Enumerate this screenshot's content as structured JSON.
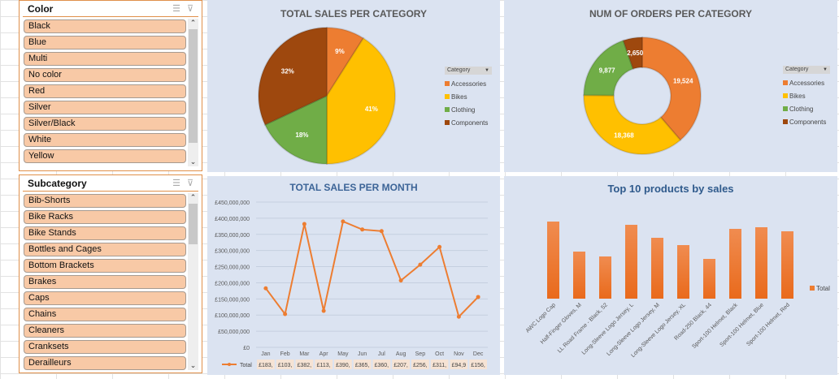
{
  "slicers": {
    "color": {
      "title": "Color",
      "items": [
        "Black",
        "Blue",
        "Multi",
        "No color",
        "Red",
        "Silver",
        "Silver/Black",
        "White",
        "Yellow"
      ]
    },
    "subcategory": {
      "title": "Subcategory",
      "items": [
        "Bib-Shorts",
        "Bike Racks",
        "Bike Stands",
        "Bottles and Cages",
        "Bottom Brackets",
        "Brakes",
        "Caps",
        "Chains",
        "Cleaners",
        "Cranksets",
        "Derailleurs"
      ]
    }
  },
  "colors": {
    "Accessories": "#ed7d31",
    "Bikes": "#ffc000",
    "Clothing": "#70ad47",
    "Components": "#9e480e",
    "line": "#ed7d31"
  },
  "chart_data": [
    {
      "type": "pie",
      "title": "TOTAL SALES PER CATEGORY",
      "legend_title": "Category",
      "legend": "right",
      "categories": [
        "Accessories",
        "Bikes",
        "Clothing",
        "Components"
      ],
      "values": [
        9,
        41,
        18,
        32
      ],
      "labels": [
        "9%",
        "41%",
        "18%",
        "32%"
      ]
    },
    {
      "type": "donut",
      "title": "NUM OF ORDERS PER CATEGORY",
      "legend_title": "Category",
      "legend": "right",
      "categories": [
        "Accessories",
        "Bikes",
        "Clothing",
        "Components"
      ],
      "values": [
        19524,
        18368,
        9877,
        2650
      ],
      "labels": [
        "19,524",
        "18,368",
        "9,877",
        "2,650"
      ]
    },
    {
      "type": "line",
      "title": "TOTAL SALES PER MONTH",
      "series_name": "Total",
      "categories": [
        "Jan",
        "Feb",
        "Mar",
        "Apr",
        "May",
        "Jun",
        "Jul",
        "Aug",
        "Sep",
        "Oct",
        "Nov",
        "Dec"
      ],
      "values": [
        183000000,
        103000000,
        382000000,
        113000000,
        390000000,
        365000000,
        360000000,
        207000000,
        256000000,
        311000000,
        94900000,
        156000000
      ],
      "table_labels": [
        "£183,",
        "£103,",
        "£382,",
        "£113,",
        "£390,",
        "£365,",
        "£360,",
        "£207,",
        "£256,",
        "£311,",
        "£94,9",
        "£156,"
      ],
      "ylim": [
        0,
        450000000
      ],
      "yticks": [
        "£0",
        "£50,000,000",
        "£100,000,000",
        "£150,000,000",
        "£200,000,000",
        "£250,000,000",
        "£300,000,000",
        "£350,000,000",
        "£400,000,000",
        "£450,000,000"
      ],
      "grid": true
    },
    {
      "type": "bar",
      "title": "Top 10 products by sales",
      "series_name": "Total",
      "legend": "right",
      "categories": [
        "AWC Logo Cap",
        "Half-Finger Gloves, M",
        "LL Road Frame - Black, 52",
        "Long-Sleeve Logo Jersey, L",
        "Long-Sleeve Logo Jersey, M",
        "Long-Sleeve Logo Jersey, XL",
        "Road-250 Black, 44",
        "Sport-100 Helmet, Black",
        "Sport-100 Helmet, Blue",
        "Sport-100 Helmet, Red"
      ],
      "values": [
        95,
        58,
        52,
        91,
        75,
        66,
        49,
        86,
        88,
        83
      ]
    }
  ]
}
